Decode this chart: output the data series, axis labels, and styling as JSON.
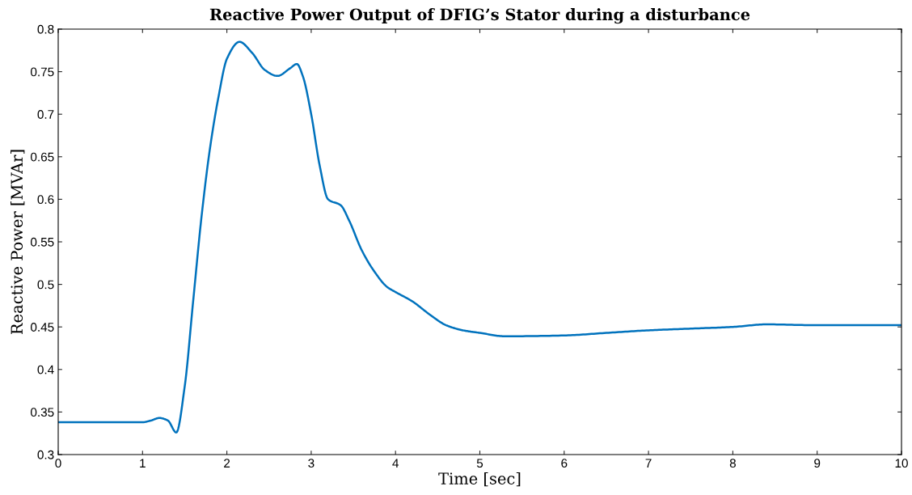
{
  "chart_data": {
    "type": "line",
    "title": "Reactive Power Output of DFIG’s Stator during a disturbance",
    "xlabel": "Time [sec]",
    "ylabel": "Reactive Power [MVAr]",
    "x": [
      0,
      0.5,
      1.0,
      1.1,
      1.2,
      1.3,
      1.4,
      1.5,
      1.6,
      1.7,
      1.8,
      1.9,
      2.0,
      2.15,
      2.3,
      2.45,
      2.6,
      2.75,
      2.83,
      2.9,
      3.0,
      3.1,
      3.2,
      3.35,
      3.45,
      3.6,
      3.75,
      3.9,
      4.0,
      4.2,
      4.4,
      4.6,
      4.8,
      5.0,
      5.3,
      6.0,
      6.5,
      7.0,
      7.5,
      8.0,
      8.4,
      9.0,
      10.0
    ],
    "series": [
      {
        "color": "#0072bd",
        "values": [
          0.338,
          0.338,
          0.338,
          0.34,
          0.343,
          0.34,
          0.326,
          0.38,
          0.48,
          0.58,
          0.66,
          0.72,
          0.765,
          0.785,
          0.772,
          0.752,
          0.745,
          0.754,
          0.759,
          0.745,
          0.7,
          0.64,
          0.6,
          0.593,
          0.575,
          0.54,
          0.515,
          0.497,
          0.491,
          0.48,
          0.465,
          0.452,
          0.446,
          0.443,
          0.439,
          0.44,
          0.443,
          0.446,
          0.448,
          0.45,
          0.453,
          0.452,
          0.452
        ]
      }
    ],
    "xlim": [
      0,
      10
    ],
    "xticks": [
      0,
      1,
      2,
      3,
      4,
      5,
      6,
      7,
      8,
      9,
      10
    ],
    "ylim": [
      0.3,
      0.8
    ],
    "yticks": [
      0.3,
      0.35,
      0.4,
      0.45,
      0.5,
      0.55,
      0.6,
      0.65,
      0.7,
      0.75,
      0.8
    ],
    "grid": false,
    "legend": false,
    "marker": "none",
    "line_style": "solid"
  }
}
